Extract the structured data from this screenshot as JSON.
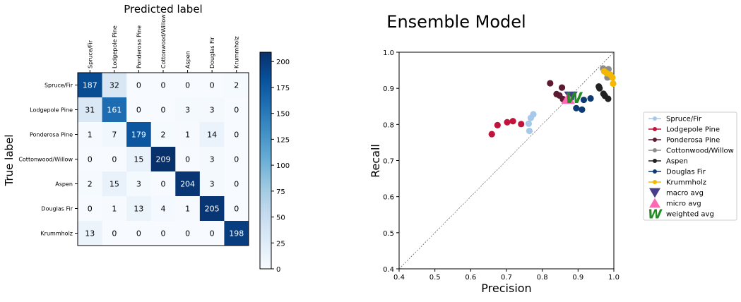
{
  "chart_data": [
    {
      "type": "heatmap",
      "title": "Predicted label",
      "xlabel": "Predicted label",
      "ylabel": "True label",
      "labels": [
        "Spruce/Fir",
        "Lodgepole Pine",
        "Ponderosa Pine",
        "Cottonwood/Willow",
        "Aspen",
        "Douglas Fir",
        "Krummholz"
      ],
      "matrix": [
        [
          187,
          32,
          0,
          0,
          0,
          0,
          2
        ],
        [
          31,
          161,
          0,
          0,
          3,
          3,
          0
        ],
        [
          1,
          7,
          179,
          2,
          1,
          14,
          0
        ],
        [
          0,
          0,
          15,
          209,
          0,
          3,
          0
        ],
        [
          2,
          15,
          3,
          0,
          204,
          3,
          0
        ],
        [
          0,
          1,
          13,
          4,
          1,
          205,
          0
        ],
        [
          13,
          0,
          0,
          0,
          0,
          0,
          198
        ]
      ],
      "colorbar": {
        "min": 0,
        "max": 209,
        "ticks": [
          0,
          25,
          50,
          75,
          100,
          125,
          150,
          175,
          200
        ]
      },
      "colormap": "Blues"
    },
    {
      "type": "scatter",
      "title": "Ensemble Model",
      "xlabel": "Precision",
      "ylabel": "Recall",
      "xlim": [
        0.4,
        1.0
      ],
      "ylim": [
        0.4,
        1.0
      ],
      "xticks": [
        "0.4",
        "0.5",
        "0.6",
        "0.7",
        "0.8",
        "0.9",
        "1.0"
      ],
      "yticks": [
        "0.4",
        "0.5",
        "0.6",
        "0.7",
        "0.8",
        "0.9",
        "1.0"
      ],
      "diagonal": true,
      "grid": false,
      "legend_position": "right",
      "series": [
        {
          "name": "Spruce/Fir",
          "color": "#a6c8ea",
          "marker": "circle",
          "points": [
            [
              0.762,
              0.802
            ],
            [
              0.768,
              0.818
            ],
            [
              0.775,
              0.828
            ],
            [
              0.764,
              0.782
            ]
          ]
        },
        {
          "name": "Lodgepole Pine",
          "color": "#c0143c",
          "marker": "circle",
          "points": [
            [
              0.659,
              0.773
            ],
            [
              0.675,
              0.798
            ],
            [
              0.702,
              0.806
            ],
            [
              0.718,
              0.809
            ],
            [
              0.741,
              0.801
            ]
          ]
        },
        {
          "name": "Ponderosa Pine",
          "color": "#5c1a33",
          "marker": "circle",
          "points": [
            [
              0.822,
              0.914
            ],
            [
              0.84,
              0.884
            ],
            [
              0.848,
              0.88
            ],
            [
              0.855,
              0.902
            ],
            [
              0.858,
              0.87
            ],
            [
              0.872,
              0.871
            ]
          ]
        },
        {
          "name": "Cottonwood/Willow",
          "color": "#8c8c8c",
          "marker": "circle",
          "points": [
            [
              0.97,
              0.955
            ],
            [
              0.985,
              0.953
            ],
            [
              0.978,
              0.945
            ],
            [
              0.992,
              0.935
            ],
            [
              0.982,
              0.93
            ]
          ]
        },
        {
          "name": "Aspen",
          "color": "#222222",
          "marker": "circle",
          "points": [
            [
              0.958,
              0.905
            ],
            [
              0.96,
              0.9
            ],
            [
              0.971,
              0.885
            ],
            [
              0.984,
              0.871
            ],
            [
              0.975,
              0.879
            ]
          ]
        },
        {
          "name": "Douglas Fir",
          "color": "#0c3a73",
          "marker": "circle",
          "points": [
            [
              0.88,
              0.873
            ],
            [
              0.895,
              0.845
            ],
            [
              0.911,
              0.841
            ],
            [
              0.916,
              0.868
            ],
            [
              0.935,
              0.872
            ]
          ]
        },
        {
          "name": "Krummholz",
          "color": "#f5b800",
          "marker": "circle",
          "points": [
            [
              0.973,
              0.947
            ],
            [
              0.98,
              0.942
            ],
            [
              0.99,
              0.938
            ],
            [
              0.996,
              0.93
            ],
            [
              0.998,
              0.913
            ]
          ]
        },
        {
          "name": "macro avg",
          "color": "#483d8b",
          "marker": "triangle-down",
          "points": [
            [
              0.88,
              0.876
            ]
          ]
        },
        {
          "name": "micro avg",
          "color": "#ff69b4",
          "marker": "triangle-up",
          "points": [
            [
              0.872,
              0.872
            ]
          ]
        },
        {
          "name": "weighted avg",
          "color": "#228b22",
          "marker": "W",
          "points": [
            [
              0.888,
              0.875
            ]
          ]
        }
      ]
    }
  ]
}
